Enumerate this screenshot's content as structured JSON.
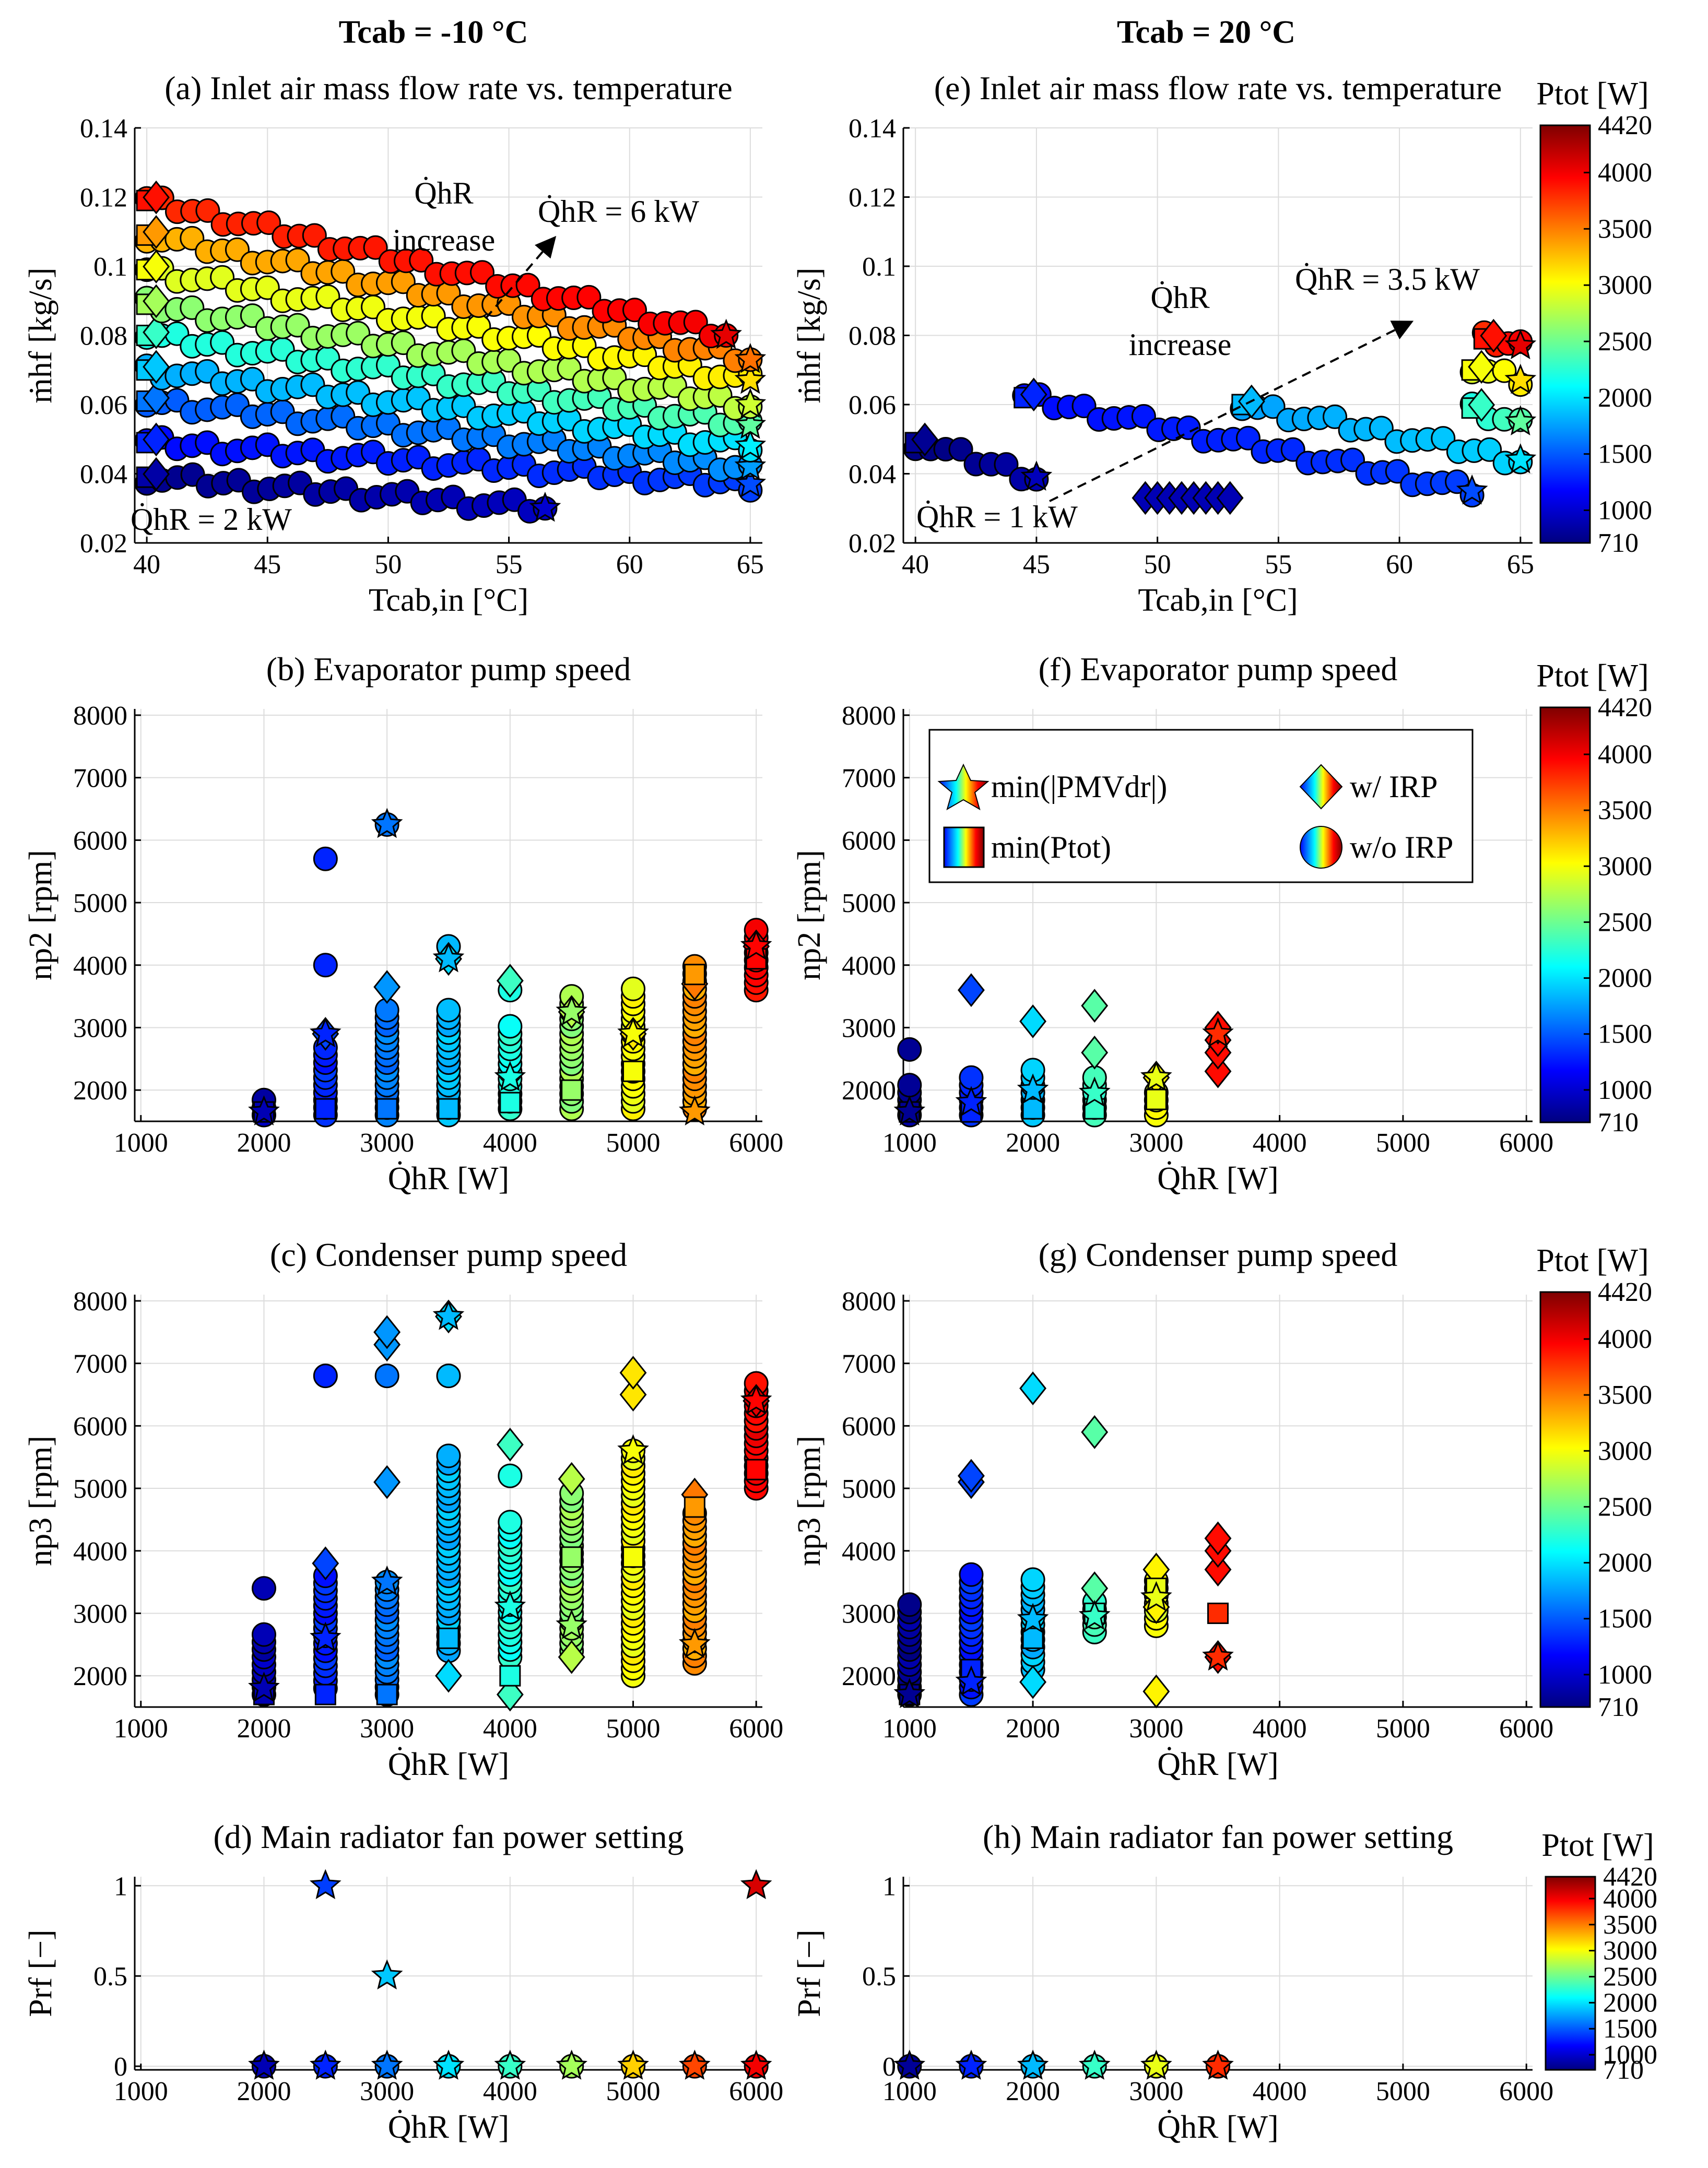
{
  "figure": {
    "column_titles": [
      "Tcab = -10 °C",
      "Tcab = 20 °C"
    ],
    "colorbar": {
      "label": "Ptot [W]",
      "min": 710,
      "max": 4420,
      "ticks": [
        710,
        1000,
        1500,
        2000,
        2500,
        3000,
        3500,
        4000,
        4420
      ]
    },
    "legend": {
      "items": [
        {
          "label": "min(|PMVdr|)",
          "marker": "star"
        },
        {
          "label": "w/ IRP",
          "marker": "diamond"
        },
        {
          "label": "min(Ptot)",
          "marker": "square"
        },
        {
          "label": "w/o IRP",
          "marker": "circle"
        }
      ]
    },
    "annotations": {
      "a_increase": "increase",
      "a_qhr": "Q̇hR",
      "a_max": "Q̇hR = 6 kW",
      "a_min": "Q̇hR = 2 kW",
      "e_increase": "increase",
      "e_qhr": "Q̇hR",
      "e_max": "Q̇hR = 3.5 kW",
      "e_min": "Q̇hR = 1 kW"
    }
  },
  "chart_data": [
    {
      "id": "a",
      "type": "scatter",
      "title": "(a) Inlet air mass flow rate vs. temperature",
      "xlabel": "Tcab,in [°C]",
      "ylabel": "ṁhf [kg/s]",
      "xlim": [
        39.5,
        65.5
      ],
      "ylim": [
        0.02,
        0.14
      ],
      "xticks": [
        40,
        45,
        50,
        55,
        60,
        65
      ],
      "yticks": [
        0.02,
        0.04,
        0.06,
        0.08,
        0.1,
        0.12,
        0.14
      ],
      "series": [
        {
          "qhr": 2000,
          "x_range": [
            40,
            56.5
          ],
          "y_range": [
            0.039,
            0.03
          ],
          "ptot": 850
        },
        {
          "qhr": 2500,
          "x_range": [
            40,
            65
          ],
          "y_range": [
            0.049,
            0.037
          ],
          "ptot": 1300
        },
        {
          "qhr": 3000,
          "x_range": [
            40,
            65
          ],
          "y_range": [
            0.061,
            0.042
          ],
          "ptot": 1600
        },
        {
          "qhr": 3500,
          "x_range": [
            40,
            65
          ],
          "y_range": [
            0.07,
            0.048
          ],
          "ptot": 1900
        },
        {
          "qhr": 4000,
          "x_range": [
            40,
            65
          ],
          "y_range": [
            0.08,
            0.054
          ],
          "ptot": 2300
        },
        {
          "qhr": 4500,
          "x_range": [
            40,
            65
          ],
          "y_range": [
            0.089,
            0.06
          ],
          "ptot": 2700
        },
        {
          "qhr": 5000,
          "x_range": [
            40,
            65
          ],
          "y_range": [
            0.099,
            0.067
          ],
          "ptot": 3000
        },
        {
          "qhr": 5500,
          "x_range": [
            40,
            65
          ],
          "y_range": [
            0.109,
            0.073
          ],
          "ptot": 3400
        },
        {
          "qhr": 6000,
          "x_range": [
            40,
            64
          ],
          "y_range": [
            0.119,
            0.08
          ],
          "ptot": 3900
        }
      ]
    },
    {
      "id": "b",
      "type": "scatter",
      "title": "(b) Evaporator pump speed",
      "xlabel": "Q̇hR [W]",
      "ylabel": "np2 [rpm]",
      "xlim": [
        950,
        6050
      ],
      "ylim": [
        1500,
        8100
      ],
      "xticks": [
        1000,
        2000,
        3000,
        4000,
        5000,
        6000
      ],
      "yticks": [
        2000,
        3000,
        4000,
        5000,
        6000,
        7000,
        8000
      ],
      "columns": [
        {
          "x": 2000,
          "ptot": 900,
          "circle_range": [
            1600,
            1900
          ],
          "diamonds": [],
          "star": 1650,
          "square": 1650
        },
        {
          "x": 2500,
          "ptot": 1300,
          "circle_range": [
            1600,
            2700
          ],
          "extra_circles": [
            4000,
            5700
          ],
          "diamonds": [
            2900
          ],
          "star": 2900,
          "square": 1700
        },
        {
          "x": 3000,
          "ptot": 1600,
          "circle_range": [
            1600,
            3300
          ],
          "extra_circles": [
            6250
          ],
          "diamonds": [
            3650
          ],
          "star": 6250,
          "square": 1700
        },
        {
          "x": 3500,
          "ptot": 1850,
          "circle_range": [
            1600,
            3300
          ],
          "extra_circles": [
            4300
          ],
          "diamonds": [
            4100
          ],
          "star": 4100,
          "square": 1700
        },
        {
          "x": 4000,
          "ptot": 2200,
          "circle_range": [
            1700,
            3100
          ],
          "extra_circles": [
            3600
          ],
          "diamonds": [
            3750
          ],
          "star": 2200,
          "square": 1800
        },
        {
          "x": 4500,
          "ptot": 2650,
          "circle_range": [
            1700,
            3500
          ],
          "diamonds": [
            3250
          ],
          "star": 3250,
          "square": 2000
        },
        {
          "x": 5000,
          "ptot": 3000,
          "circle_range": [
            1700,
            3700
          ],
          "diamonds": [
            2900
          ],
          "star": 2900,
          "square": 2300
        },
        {
          "x": 5500,
          "ptot": 3400,
          "circle_range": [
            1700,
            4000
          ],
          "diamonds": [
            3700
          ],
          "star": 1650,
          "square": 3850
        },
        {
          "x": 6000,
          "ptot": 3950,
          "circle_range": [
            3600,
            4600
          ],
          "diamonds": [
            4300
          ],
          "star": 4300,
          "square": 4100
        }
      ]
    },
    {
      "id": "c",
      "type": "scatter",
      "title": "(c) Condenser pump speed",
      "xlabel": "Q̇hR [W]",
      "ylabel": "np3 [rpm]",
      "xlim": [
        950,
        6050
      ],
      "ylim": [
        1500,
        8100
      ],
      "xticks": [
        1000,
        2000,
        3000,
        4000,
        5000,
        6000
      ],
      "yticks": [
        2000,
        3000,
        4000,
        5000,
        6000,
        7000,
        8000
      ],
      "columns": [
        {
          "x": 2000,
          "ptot": 900,
          "circle_range": [
            1700,
            2700
          ],
          "extra_circles": [
            3400
          ],
          "diamonds": [],
          "star": 1800,
          "square": 1700
        },
        {
          "x": 2500,
          "ptot": 1300,
          "circle_range": [
            1800,
            3700
          ],
          "extra_circles": [
            6800
          ],
          "diamonds": [
            3800
          ],
          "star": 2600,
          "square": 1700
        },
        {
          "x": 3000,
          "ptot": 1600,
          "circle_range": [
            1700,
            3500
          ],
          "extra_circles": [
            6800
          ],
          "diamonds": [
            5100,
            7300,
            7500
          ],
          "star": 3500,
          "square": 1700
        },
        {
          "x": 3500,
          "ptot": 1850,
          "circle_range": [
            2400,
            5600
          ],
          "extra_circles": [
            6800
          ],
          "diamonds": [
            2000,
            7750
          ],
          "star": 7750,
          "square": 2600
        },
        {
          "x": 4000,
          "ptot": 2200,
          "circle_range": [
            2300,
            4500
          ],
          "extra_circles": [
            5200
          ],
          "diamonds": [
            1700,
            5700
          ],
          "star": 3100,
          "square": 2000
        },
        {
          "x": 4500,
          "ptot": 2650,
          "circle_range": [
            2400,
            5000
          ],
          "diamonds": [
            2300,
            5150
          ],
          "star": 2800,
          "square": 3900
        },
        {
          "x": 5000,
          "ptot": 3000,
          "circle_range": [
            2000,
            5700
          ],
          "diamonds": [
            6500,
            6850
          ],
          "star": 5600,
          "square": 3900
        },
        {
          "x": 5500,
          "ptot": 3400,
          "circle_range": [
            2200,
            4600
          ],
          "diamonds": [
            4900
          ],
          "star": 2500,
          "square": 4700
        },
        {
          "x": 6000,
          "ptot": 3950,
          "circle_range": [
            5000,
            6700
          ],
          "diamonds": [
            6400
          ],
          "star": 6400,
          "square": 5300
        }
      ]
    },
    {
      "id": "d",
      "type": "scatter",
      "title": "(d) Main radiator fan power setting",
      "xlabel": "Q̇hR [W]",
      "ylabel": "Prf [−]",
      "xlim": [
        950,
        6050
      ],
      "ylim": [
        -0.02,
        1.05
      ],
      "xticks": [
        1000,
        2000,
        3000,
        4000,
        5000,
        6000
      ],
      "yticks": [
        0,
        0.5,
        1
      ],
      "points": [
        {
          "x": 2000,
          "y": 0,
          "ptot": 900
        },
        {
          "x": 2500,
          "y": 0,
          "ptot": 1300
        },
        {
          "x": 2500,
          "y": 1,
          "ptot": 1400
        },
        {
          "x": 3000,
          "y": 0,
          "ptot": 1600
        },
        {
          "x": 3000,
          "y": 0.5,
          "ptot": 1900
        },
        {
          "x": 3500,
          "y": 0,
          "ptot": 2000
        },
        {
          "x": 4000,
          "y": 0,
          "ptot": 2300
        },
        {
          "x": 4500,
          "y": 0,
          "ptot": 2700
        },
        {
          "x": 5000,
          "y": 0,
          "ptot": 3200
        },
        {
          "x": 5500,
          "y": 0,
          "ptot": 3700
        },
        {
          "x": 6000,
          "y": 0,
          "ptot": 4000
        },
        {
          "x": 6000,
          "y": 1,
          "ptot": 4100
        }
      ]
    },
    {
      "id": "e",
      "type": "scatter",
      "title": "(e) Inlet air mass flow rate vs. temperature",
      "xlabel": "Tcab,in [°C]",
      "ylabel": "ṁhf [kg/s]",
      "xlim": [
        39.5,
        65.5
      ],
      "ylim": [
        0.02,
        0.14
      ],
      "xticks": [
        40,
        45,
        50,
        55,
        60,
        65
      ],
      "yticks": [
        0.02,
        0.04,
        0.06,
        0.08,
        0.1,
        0.12,
        0.14
      ],
      "series": [
        {
          "qhr": 1000,
          "x_range": [
            40,
            45
          ],
          "y_range": [
            0.049,
            0.039
          ],
          "ptot": 780
        },
        {
          "qhr": 1500,
          "x_range": [
            44.5,
            63
          ],
          "y_range": [
            0.062,
            0.035
          ],
          "ptot": 1300
        },
        {
          "qhr": 2000,
          "x_range": [
            53.5,
            65
          ],
          "y_range": [
            0.06,
            0.044
          ],
          "ptot": 1850
        },
        {
          "qhr": 2500,
          "x_range": [
            63,
            65
          ],
          "y_range": [
            0.059,
            0.055
          ],
          "ptot": 2300
        },
        {
          "qhr": 3000,
          "x_range": [
            63,
            65
          ],
          "y_range": [
            0.07,
            0.067
          ],
          "ptot": 3000
        },
        {
          "qhr": 3500,
          "x_range": [
            63.5,
            65
          ],
          "y_range": [
            0.079,
            0.077
          ],
          "ptot": 3900
        }
      ],
      "clusters": [
        {
          "x_range": [
            49.5,
            53
          ],
          "y": 0.033,
          "ptot": 900
        }
      ]
    },
    {
      "id": "f",
      "type": "scatter",
      "title": "(f) Evaporator pump speed",
      "xlabel": "Q̇hR [W]",
      "ylabel": "np2 [rpm]",
      "xlim": [
        950,
        6050
      ],
      "ylim": [
        1500,
        8100
      ],
      "xticks": [
        1000,
        2000,
        3000,
        4000,
        5000,
        6000
      ],
      "yticks": [
        2000,
        3000,
        4000,
        5000,
        6000,
        7000,
        8000
      ],
      "columns": [
        {
          "x": 1000,
          "ptot": 780,
          "circle_range": [
            1600,
            2100
          ],
          "extra_circles": [
            2650
          ],
          "diamonds": [],
          "star": 1650,
          "square": 1650
        },
        {
          "x": 1500,
          "ptot": 1300,
          "circle_range": [
            1600,
            2300
          ],
          "diamonds": [
            3600
          ],
          "star": 1800,
          "square": 1650
        },
        {
          "x": 2000,
          "ptot": 1850,
          "circle_range": [
            1600,
            2400
          ],
          "diamonds": [
            3100
          ],
          "star": 2000,
          "square": 1700
        },
        {
          "x": 2500,
          "ptot": 2300,
          "circle_range": [
            1600,
            2300
          ],
          "diamonds": [
            2600,
            3350
          ],
          "star": 1950,
          "square": 1700
        },
        {
          "x": 3000,
          "ptot": 2950,
          "circle_range": [
            1600,
            2000
          ],
          "diamonds": [
            2200
          ],
          "star": 2200,
          "square": 1850
        },
        {
          "x": 3500,
          "ptot": 3800,
          "circle_range": [],
          "diamonds": [
            2300,
            2600,
            2800,
            3000
          ],
          "star": 2900,
          "square": null
        }
      ]
    },
    {
      "id": "g",
      "type": "scatter",
      "title": "(g) Condenser pump speed",
      "xlabel": "Q̇hR [W]",
      "ylabel": "np3 [rpm]",
      "xlim": [
        950,
        6050
      ],
      "ylim": [
        1500,
        8100
      ],
      "xticks": [
        1000,
        2000,
        3000,
        4000,
        5000,
        6000
      ],
      "yticks": [
        2000,
        3000,
        4000,
        5000,
        6000,
        7000,
        8000
      ],
      "columns": [
        {
          "x": 1000,
          "ptot": 780,
          "circle_range": [
            1700,
            3200
          ],
          "diamonds": [],
          "star": 1700,
          "square": 1700
        },
        {
          "x": 1500,
          "ptot": 1300,
          "circle_range": [
            1700,
            3700
          ],
          "diamonds": [
            5100,
            5200
          ],
          "star": 1900,
          "square": 2100
        },
        {
          "x": 2000,
          "ptot": 1850,
          "circle_range": [
            2100,
            3600
          ],
          "diamonds": [
            1900,
            6600
          ],
          "star": 2900,
          "square": 2600
        },
        {
          "x": 2500,
          "ptot": 2300,
          "circle_range": [
            2700,
            3200
          ],
          "diamonds": [
            3400,
            5900
          ],
          "star": 2950,
          "square": 3000
        },
        {
          "x": 3000,
          "ptot": 2950,
          "circle_range": [
            2800,
            3600
          ],
          "diamonds": [
            1750,
            3100,
            3700
          ],
          "star": 3250,
          "square": 3400
        },
        {
          "x": 3500,
          "ptot": 3800,
          "circle_range": [],
          "diamonds": [
            2300,
            3700,
            4000,
            4200
          ],
          "star": 2300,
          "square": 3000
        }
      ]
    },
    {
      "id": "h",
      "type": "scatter",
      "title": "(h) Main radiator fan power setting",
      "xlabel": "Q̇hR [W]",
      "ylabel": "Prf [−]",
      "xlim": [
        950,
        6050
      ],
      "ylim": [
        -0.02,
        1.05
      ],
      "xticks": [
        1000,
        2000,
        3000,
        4000,
        5000,
        6000
      ],
      "yticks": [
        0,
        0.5,
        1
      ],
      "points": [
        {
          "x": 1000,
          "y": 0,
          "ptot": 800
        },
        {
          "x": 1500,
          "y": 0,
          "ptot": 1300
        },
        {
          "x": 2000,
          "y": 0,
          "ptot": 1850
        },
        {
          "x": 2500,
          "y": 0,
          "ptot": 2300
        },
        {
          "x": 3000,
          "y": 0,
          "ptot": 2950
        },
        {
          "x": 3500,
          "y": 0,
          "ptot": 3800
        }
      ]
    }
  ]
}
